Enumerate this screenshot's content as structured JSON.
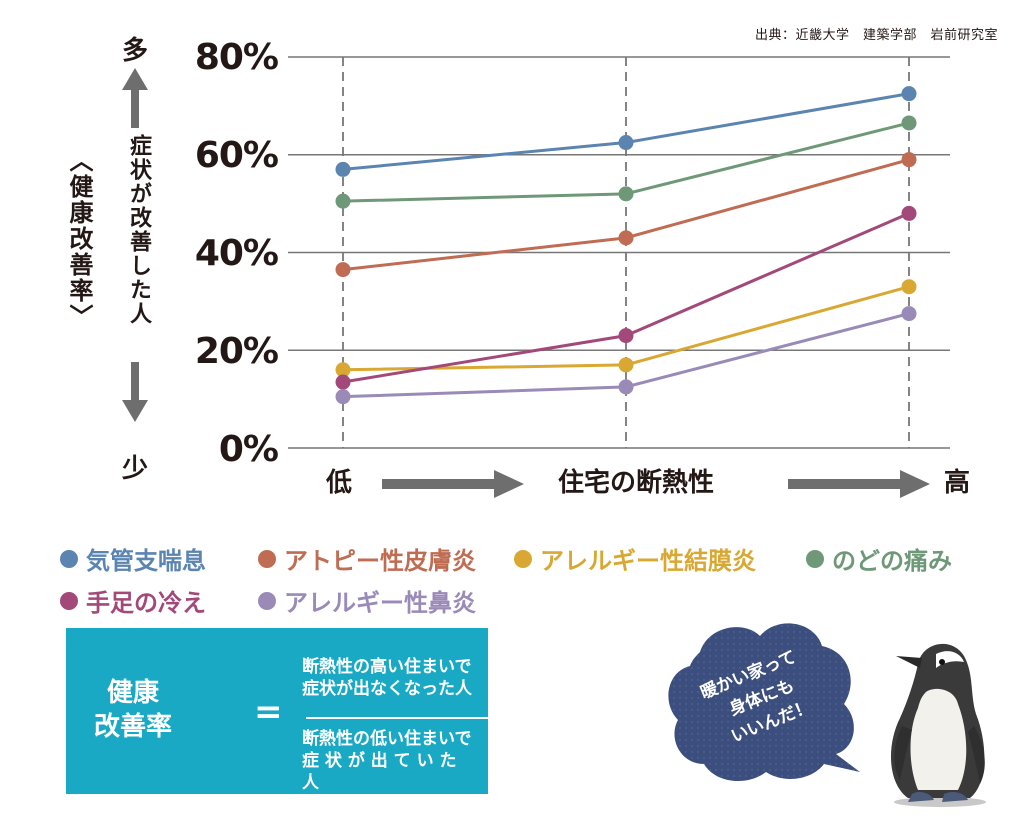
{
  "source": "出典：近畿大学　建築学部　岩前研究室",
  "y_axis": {
    "top_label": "多",
    "bottom_label": "少",
    "title_main": "症状が改善した人",
    "title_sub": "〈健康改善率〉"
  },
  "x_axis": {
    "low_label": "低",
    "mid_label": "住宅の断熱性",
    "high_label": "高"
  },
  "formula": {
    "lhs_line1": "健康",
    "lhs_line2": "改善率",
    "equals": "=",
    "numerator_line1": "断熱性の高い住まいで",
    "numerator_line2": "症状が出なくなった人",
    "denominator_line1": "断熱性の低い住まいで",
    "denominator_line2": "症 状 が 出 て い た 人"
  },
  "speech_bubble": {
    "line1": "暖かい家って",
    "line2": "身体にも",
    "line3": "いいんだ！",
    "color": "#3c4e7d"
  },
  "colors": {
    "grid": "#777777",
    "arrow": "#6e6e6e",
    "formula_bg": "#1aa9c4"
  },
  "chart_data": {
    "type": "line",
    "categories": [
      "低",
      "",
      "高"
    ],
    "y_ticks": [
      "0%",
      "20%",
      "40%",
      "60%",
      "80%"
    ],
    "ylim": [
      0,
      80
    ],
    "grid": true,
    "legend_position": "bottom",
    "series": [
      {
        "name": "気管支喘息",
        "color": "#5b84b1",
        "values": [
          57,
          62.5,
          72.5
        ]
      },
      {
        "name": "アトピー性皮膚炎",
        "color": "#bf6c52",
        "values": [
          36.5,
          43,
          59
        ]
      },
      {
        "name": "アレルギー性結膜炎",
        "color": "#d9a833",
        "values": [
          16,
          17,
          33
        ]
      },
      {
        "name": "のどの痛み",
        "color": "#6f9878",
        "values": [
          50.5,
          52,
          66.5
        ]
      },
      {
        "name": "手足の冷え",
        "color": "#a2497a",
        "values": [
          13.5,
          23,
          48
        ]
      },
      {
        "name": "アレルギー性鼻炎",
        "color": "#9a8ab8",
        "values": [
          10.5,
          12.5,
          27.5
        ]
      }
    ]
  }
}
